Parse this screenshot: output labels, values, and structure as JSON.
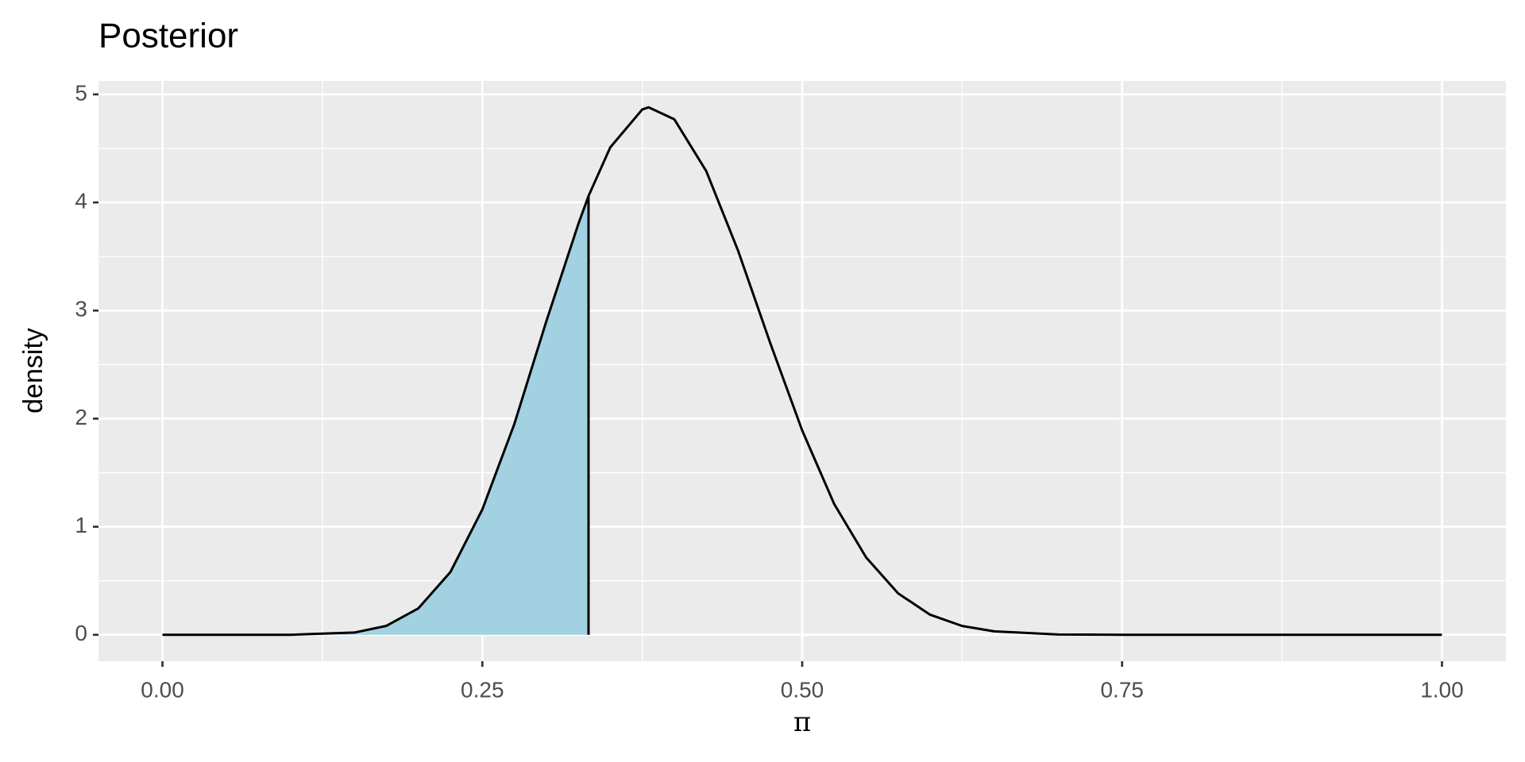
{
  "chart_data": {
    "type": "line",
    "title": "Posterior",
    "x_label": "π",
    "y_label": "density",
    "x": [
      0,
      0.05,
      0.1,
      0.15,
      0.175,
      0.2,
      0.225,
      0.25,
      0.275,
      0.3,
      0.325,
      0.333,
      0.35,
      0.375,
      0.38,
      0.4,
      0.425,
      0.45,
      0.475,
      0.5,
      0.525,
      0.55,
      0.575,
      0.6,
      0.625,
      0.65,
      0.7,
      0.75,
      0.8,
      0.9,
      1
    ],
    "values": [
      0,
      0,
      0.0004,
      0.021,
      0.083,
      0.245,
      0.58,
      1.16,
      1.95,
      2.9,
      3.8,
      4.06,
      4.51,
      4.86,
      4.88,
      4.77,
      4.29,
      3.55,
      2.7,
      1.89,
      1.21,
      0.715,
      0.383,
      0.186,
      0.082,
      0.032,
      0.0033,
      0.0002,
      0,
      0,
      0
    ],
    "color": "#000000",
    "fill_color": "#a2d1e2",
    "shade_xlim": [
      0,
      0.333
    ],
    "xlim": [
      -0.05,
      1.05
    ],
    "ylim": [
      -0.244,
      5.124
    ],
    "xticks": [
      {
        "value": 0,
        "label": "0.00"
      },
      {
        "value": 0.25,
        "label": "0.25"
      },
      {
        "value": 0.5,
        "label": "0.50"
      },
      {
        "value": 0.75,
        "label": "0.75"
      },
      {
        "value": 1,
        "label": "1.00"
      }
    ],
    "yticks": [
      0,
      1,
      2,
      3,
      4,
      5
    ],
    "x_minor_ticks": [
      0.125,
      0.375,
      0.625,
      0.875
    ],
    "y_minor_ticks": [
      0.5,
      1.5,
      2.5,
      3.5,
      4.5
    ],
    "grid": true
  }
}
